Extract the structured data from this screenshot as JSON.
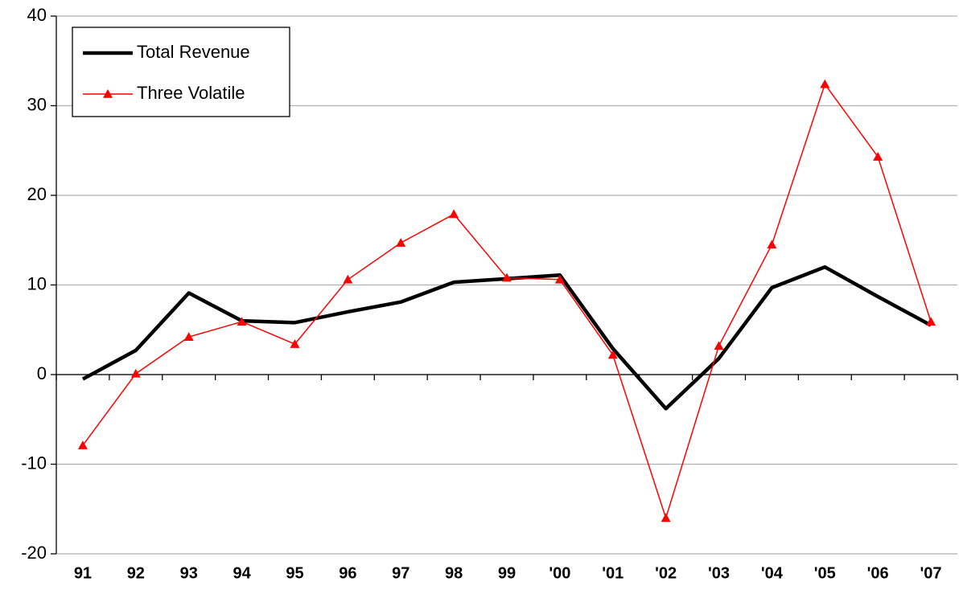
{
  "chart_data": {
    "type": "line",
    "categories": [
      "91",
      "92",
      "93",
      "94",
      "95",
      "96",
      "97",
      "98",
      "99",
      "'00",
      "'01",
      "'02",
      "'03",
      "'04",
      "'05",
      "'06",
      "'07"
    ],
    "series": [
      {
        "name": "Total Revenue",
        "color": "#000000",
        "values": [
          -0.5,
          2.7,
          9.1,
          6.0,
          5.8,
          7.0,
          8.1,
          10.3,
          10.7,
          11.1,
          2.9,
          -3.8,
          1.8,
          9.7,
          12.0,
          8.7,
          5.5
        ]
      },
      {
        "name": "Three Volatile",
        "color": "#ff0000",
        "values": [
          -7.9,
          0.1,
          4.2,
          5.9,
          3.4,
          10.6,
          14.7,
          17.9,
          10.8,
          10.6,
          2.2,
          -16.0,
          3.2,
          14.5,
          32.4,
          24.3,
          5.9
        ]
      }
    ],
    "ylim": [
      -20,
      40
    ],
    "yticks": [
      -20,
      -10,
      0,
      10,
      20,
      30,
      40
    ],
    "grid": true,
    "legend": "upper left"
  }
}
